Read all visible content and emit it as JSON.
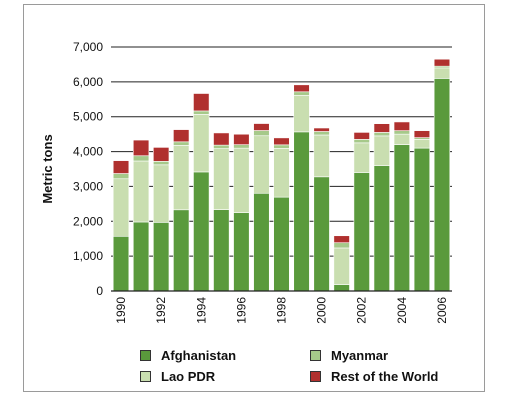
{
  "chart_data": {
    "type": "bar",
    "stacked": true,
    "categories": [
      "1990",
      "1991",
      "1992",
      "1993",
      "1994",
      "1995",
      "1996",
      "1997",
      "1998",
      "1999",
      "2000",
      "2001",
      "2002",
      "2003",
      "2004",
      "2005",
      "2006"
    ],
    "tick_labels_x": [
      "1990",
      "1992",
      "1994",
      "1996",
      "1998",
      "2000",
      "2002",
      "2004",
      "2006"
    ],
    "ylabel": "Metric tons",
    "ylim": [
      0,
      7000
    ],
    "y_ticks": [
      "0",
      "1,000",
      "2,000",
      "3,000",
      "4,000",
      "5,000",
      "6,000",
      "7,000"
    ],
    "y_tick_values": [
      0,
      1000,
      2000,
      3000,
      4000,
      5000,
      6000,
      7000
    ],
    "grid": true,
    "legend_position": "bottom",
    "series": [
      {
        "name": "Afghanistan",
        "color": "#5a9a3c",
        "values": [
          1570,
          1980,
          1970,
          2330,
          3416,
          2335,
          2248,
          2804,
          2693,
          4565,
          3276,
          185,
          3400,
          3600,
          4200,
          4100,
          6100
        ]
      },
      {
        "name": "Lao PDR",
        "color": "#c9deb0",
        "values": [
          1650,
          1750,
          1650,
          1850,
          1650,
          1750,
          1850,
          1650,
          1400,
          1050,
          1200,
          1050,
          850,
          850,
          300,
          250,
          300
        ]
      },
      {
        "name": "Myanmar",
        "color": "#a6c98a",
        "values": [
          150,
          150,
          100,
          100,
          100,
          100,
          100,
          150,
          100,
          100,
          100,
          150,
          100,
          100,
          100,
          50,
          50
        ]
      },
      {
        "name": "Rest of the World",
        "color": "#b0302e",
        "values": [
          370,
          450,
          400,
          350,
          500,
          350,
          300,
          200,
          200,
          200,
          100,
          200,
          200,
          250,
          250,
          200,
          200
        ]
      }
    ],
    "legend_order": [
      "Afghanistan",
      "Myanmar",
      "Lao PDR",
      "Rest of the World"
    ]
  }
}
